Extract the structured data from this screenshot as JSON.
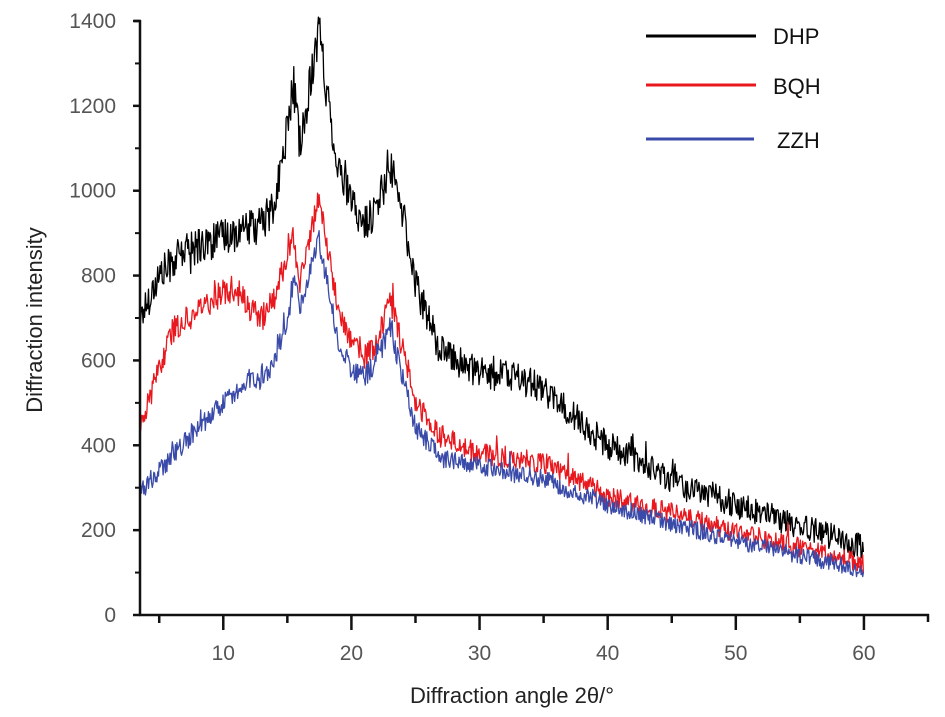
{
  "chart_data": {
    "type": "line",
    "title": "",
    "xlabel": "Diffraction angle 2θ/°",
    "ylabel": "Diffraction intensity",
    "xlim": [
      3.5,
      65
    ],
    "ylim": [
      0,
      1400
    ],
    "xticks": [
      10,
      20,
      30,
      40,
      50,
      60
    ],
    "xtick_labels": [
      "10",
      "20",
      "30",
      "40",
      "50",
      "60"
    ],
    "yticks": [
      0,
      200,
      400,
      600,
      800,
      1000,
      1200,
      1400
    ],
    "ytick_labels": [
      "0",
      "200",
      "400",
      "600",
      "800",
      "1000",
      "1200",
      "1400"
    ],
    "grid": false,
    "legend_position": "top-right",
    "x_range_of_data": [
      3.5,
      60
    ],
    "series": [
      {
        "name": "DHP",
        "color": "#000000",
        "noise_amplitude": 45,
        "x": [
          3.5,
          5,
          7,
          10,
          13,
          14,
          15,
          15.5,
          16,
          17,
          17.5,
          18,
          19,
          20,
          21,
          22,
          23,
          24,
          25,
          27,
          30,
          33,
          35,
          40,
          45,
          50,
          55,
          60
        ],
        "y": [
          700,
          800,
          860,
          890,
          920,
          960,
          1150,
          1250,
          1100,
          1300,
          1380,
          1250,
          1050,
          970,
          920,
          960,
          1060,
          950,
          780,
          620,
          570,
          560,
          530,
          400,
          320,
          260,
          210,
          160
        ]
      },
      {
        "name": "BQH",
        "color": "#e8181e",
        "noise_amplitude": 35,
        "x": [
          3.5,
          5,
          6,
          8,
          10,
          11,
          12,
          13,
          14,
          15,
          15.5,
          16,
          17,
          17.5,
          18,
          19,
          20,
          21,
          22,
          23,
          24,
          25,
          27,
          30,
          35,
          40,
          45,
          50,
          55,
          60
        ],
        "y": [
          440,
          580,
          670,
          720,
          760,
          770,
          720,
          700,
          740,
          860,
          900,
          780,
          930,
          980,
          880,
          720,
          650,
          610,
          640,
          740,
          630,
          500,
          420,
          380,
          360,
          280,
          240,
          195,
          160,
          120
        ]
      },
      {
        "name": "ZZH",
        "color": "#3a4aa8",
        "noise_amplitude": 30,
        "x": [
          3.5,
          5,
          8,
          10,
          12,
          13,
          14,
          15,
          15.5,
          16,
          17,
          17.5,
          18,
          19,
          20,
          21,
          22,
          23,
          24,
          25,
          27,
          30,
          35,
          40,
          45,
          50,
          55,
          60
        ],
        "y": [
          290,
          340,
          440,
          500,
          560,
          540,
          600,
          700,
          780,
          730,
          840,
          880,
          800,
          640,
          580,
          560,
          600,
          680,
          560,
          440,
          370,
          350,
          320,
          260,
          215,
          175,
          140,
          105
        ]
      }
    ]
  }
}
